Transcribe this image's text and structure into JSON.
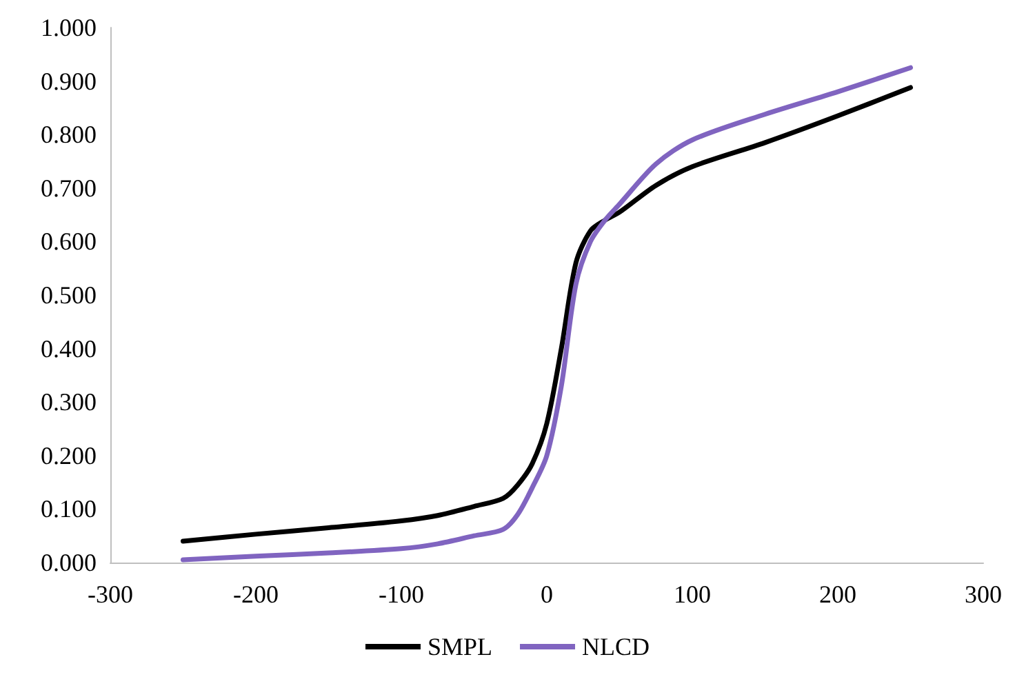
{
  "chart_data": {
    "type": "line",
    "xlim": [
      -300,
      300
    ],
    "xticks": [
      -300,
      -200,
      -100,
      0,
      100,
      200,
      300
    ],
    "ylim": [
      0,
      1
    ],
    "yticks": [
      {
        "value": 0,
        "label": "0.000"
      },
      {
        "value": 0.1,
        "label": "0.100"
      },
      {
        "value": 0.2,
        "label": "0.200"
      },
      {
        "value": 0.3,
        "label": "0.300"
      },
      {
        "value": 0.4,
        "label": "0.400"
      },
      {
        "value": 0.5,
        "label": "0.500"
      },
      {
        "value": 0.6,
        "label": "0.600"
      },
      {
        "value": 0.7,
        "label": "0.700"
      },
      {
        "value": 0.8,
        "label": "0.800"
      },
      {
        "value": 0.9,
        "label": "0.900"
      },
      {
        "value": 1,
        "label": "1.000"
      }
    ],
    "grid": false,
    "legend": "bottom",
    "marker": "none",
    "line_style": "solid",
    "x": [
      -250,
      -200,
      -150,
      -100,
      -75,
      -50,
      -30,
      -20,
      -10,
      0,
      10,
      20,
      30,
      40,
      50,
      75,
      100,
      150,
      200,
      250
    ],
    "series": [
      {
        "name": "SMPL",
        "color": "#000000",
        "values": [
          0.04,
          0.053,
          0.065,
          0.078,
          0.088,
          0.105,
          0.12,
          0.145,
          0.185,
          0.26,
          0.4,
          0.56,
          0.62,
          0.64,
          0.655,
          0.705,
          0.74,
          0.785,
          0.835,
          0.888
        ]
      },
      {
        "name": "NLCD",
        "color": "#8064c0",
        "values": [
          0.005,
          0.012,
          0.018,
          0.026,
          0.035,
          0.05,
          0.062,
          0.09,
          0.14,
          0.2,
          0.33,
          0.52,
          0.6,
          0.64,
          0.67,
          0.745,
          0.79,
          0.838,
          0.88,
          0.925
        ]
      }
    ]
  }
}
